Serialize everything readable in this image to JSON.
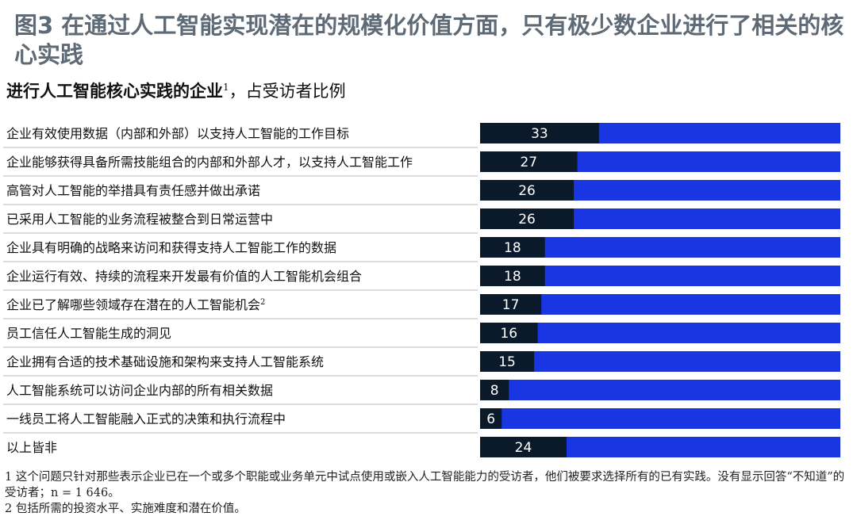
{
  "header": {
    "title": "图3 在通过人工智能实现潜在的规模化价值方面，只有极少数企业进行了相关的核心实践",
    "subtitle_main": "进行人工智能核心实践的企业",
    "subtitle_sup": "1",
    "subtitle_rest": "，占受访者比例"
  },
  "colors": {
    "value_bar": "#0b1a2b",
    "remainder_bar": "#1a36e3",
    "title_color": "#5e6a75"
  },
  "chart_data": {
    "type": "bar",
    "orientation": "horizontal",
    "stacked_to": 100,
    "unit": "percent",
    "categories": [
      "企业有效使用数据（内部和外部）以支持人工智能的工作目标",
      "企业能够获得具备所需技能组合的内部和外部人才，以支持人工智能工作",
      "高管对人工智能的举措具有责任感并做出承诺",
      "已采用人工智能的业务流程被整合到日常运营中",
      "企业具有明确的战略来访问和获得支持人工智能工作的数据",
      "企业运行有效、持续的流程来开发最有价值的人工智能机会组合",
      "企业已了解哪些领域存在潜在的人工智能机会",
      "员工信任人工智能生成的洞见",
      "企业拥有合适的技术基础设施和架构来支持人工智能系统",
      "人工智能系统可以访问企业内部的所有相关数据",
      "一线员工将人工智能融入正式的决策和执行流程中",
      "以上皆非"
    ],
    "category_superscripts": [
      "",
      "",
      "",
      "",
      "",
      "",
      "2",
      "",
      "",
      "",
      "",
      ""
    ],
    "values": [
      33,
      27,
      26,
      26,
      18,
      18,
      17,
      16,
      15,
      8,
      6,
      24
    ],
    "xlim": [
      0,
      100
    ],
    "grid": false,
    "legend": "none"
  },
  "footnotes": {
    "note1": "1 这个问题只针对那些表示企业已在一个或多个职能或业务单元中试点使用或嵌入人工智能能力的受访者，他们被要求选择所有的已有实践。没有显示回答“不知道”的受访者；n = 1 646。",
    "note2": "2 包括所需的投资水平、实施难度和潜在价值。"
  }
}
